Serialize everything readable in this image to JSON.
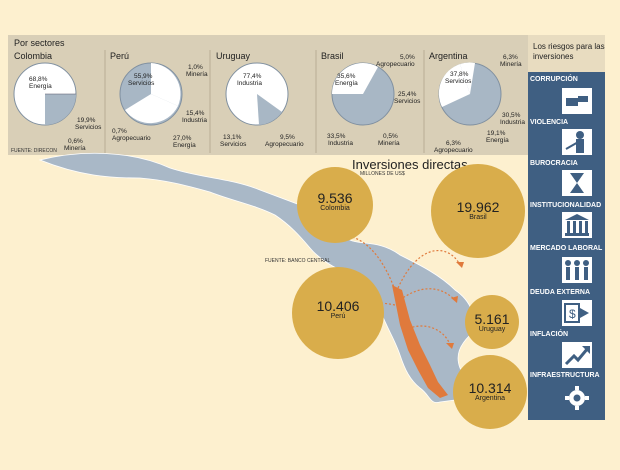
{
  "sectors_title": "Por sectores",
  "source_top": "FUENTE: DIRECON",
  "source_map": "FUENTE: BANCO CENTRAL",
  "countries": [
    {
      "name": "Colombia",
      "labels": [
        "68,8%",
        "Energía",
        "19,9%",
        "Servicios",
        "0,6%",
        "Minería"
      ]
    },
    {
      "name": "Perú",
      "labels": [
        "55,9%",
        "Servicios",
        "1,0%",
        "Minería",
        "15,4%",
        "Industria",
        "0,7%",
        "Agropecuario",
        "27,0%",
        "Energía"
      ]
    },
    {
      "name": "Uruguay",
      "labels": [
        "77,4%",
        "Industria",
        "13,1%",
        "Servicios",
        "9,5%",
        "Agropecuario"
      ]
    },
    {
      "name": "Brasil",
      "labels": [
        "35,6%",
        "Energía",
        "5,0%",
        "Agropecuario",
        "25,4%",
        "Servicios",
        "33,5%",
        "Industria",
        "0,5%",
        "Minería"
      ]
    },
    {
      "name": "Argentina",
      "labels": [
        "37,8%",
        "Servicios",
        "6,3%",
        "Minería",
        "30,5%",
        "Industria",
        "19,1%",
        "Energía",
        "6,3%",
        "Agropecuario"
      ]
    }
  ],
  "map_title": "Inversiones directas",
  "map_subtitle": "MILLONES DE US$",
  "bubbles": [
    {
      "value": "9.536",
      "name": "Colombia"
    },
    {
      "value": "19.962",
      "name": "Brasil"
    },
    {
      "value": "10.406",
      "name": "Perú"
    },
    {
      "value": "5.161",
      "name": "Uruguay"
    },
    {
      "value": "10.314",
      "name": "Argentina"
    }
  ],
  "risks_title": "Los riesgos para las inversiones",
  "risks": [
    {
      "label": "CORRUPCIÓN",
      "icon": "handshake-icon"
    },
    {
      "label": "VIOLENCIA",
      "icon": "gunman-icon"
    },
    {
      "label": "BUROCRACIA",
      "icon": "hourglass-icon"
    },
    {
      "label": "INSTITUCIONALIDAD",
      "icon": "institution-building-icon"
    },
    {
      "label": "MERCADO LABORAL",
      "icon": "workers-icon"
    },
    {
      "label": "DEUDA EXTERNA",
      "icon": "dollar-exit-icon"
    },
    {
      "label": "INFLACIÓN",
      "icon": "rising-arrow-icon"
    },
    {
      "label": "INFRAESTRUCTURA",
      "icon": "gear-icon"
    }
  ],
  "colors": {
    "background": "#fdf0cf",
    "panel": "#d9cfb7",
    "risk_panel": "#3f5f82",
    "bubble": "#d9ad4b",
    "map_land": "#a9b8c7",
    "chile": "#e07a3c",
    "arrow": "#e07a3c",
    "pie_slice": "#a8b7c5"
  }
}
